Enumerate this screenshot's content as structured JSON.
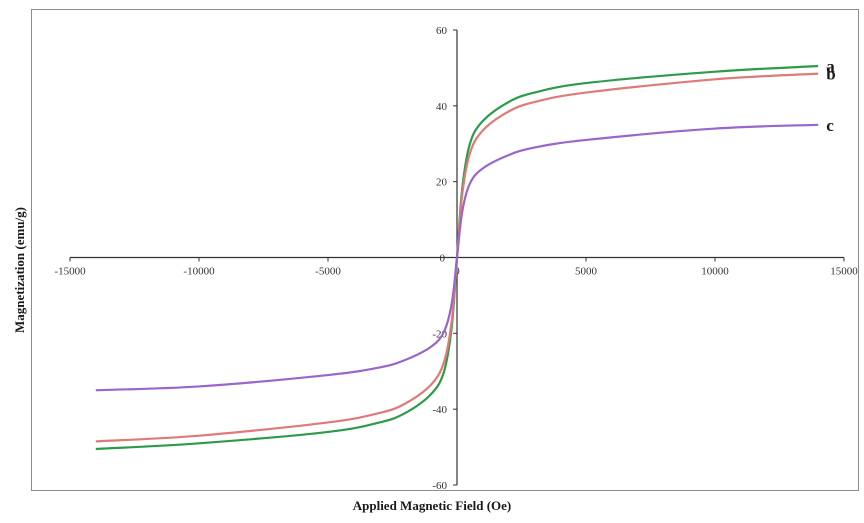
{
  "chart_data": {
    "type": "line",
    "xlabel": "Applied Magnetic Field (Oe)",
    "ylabel": "Magnetization (emu/g)",
    "xlim": [
      -15000,
      15000
    ],
    "ylim": [
      -60,
      60
    ],
    "x_ticks": [
      -15000,
      -10000,
      -5000,
      0,
      5000,
      10000,
      15000
    ],
    "y_ticks": [
      -60,
      -40,
      -20,
      0,
      20,
      40,
      60
    ],
    "x_tick_labels": [
      "-15000",
      "-10000",
      "-5000",
      "0",
      "5000",
      "10000",
      "15000"
    ],
    "y_tick_labels": [
      "-60",
      "-40",
      "-20",
      "0",
      "20",
      "40",
      "60"
    ],
    "grid": false,
    "legend": "series labels at right end of curves",
    "series": [
      {
        "name": "a",
        "color": "#2e9b4a",
        "x": [
          -14000,
          -10000,
          -5000,
          -3000,
          -2000,
          -1000,
          -500,
          -200,
          0,
          200,
          500,
          1000,
          2000,
          3000,
          5000,
          10000,
          14000
        ],
        "y": [
          -50.5,
          -49,
          -46,
          -43.5,
          -41,
          -36,
          -30,
          -18,
          0,
          18,
          30,
          36,
          41,
          43.5,
          46,
          49,
          50.5
        ]
      },
      {
        "name": "b",
        "color": "#e07a78",
        "x": [
          -14000,
          -10000,
          -5000,
          -3000,
          -2000,
          -1000,
          -500,
          -200,
          0,
          200,
          500,
          1000,
          2000,
          3000,
          5000,
          10000,
          14000
        ],
        "y": [
          -48.5,
          -47,
          -43.5,
          -41,
          -38.5,
          -33.5,
          -27.5,
          -16.5,
          0,
          16.5,
          27.5,
          33.5,
          38.5,
          41,
          43.5,
          47,
          48.5
        ]
      },
      {
        "name": "c",
        "color": "#9966cc",
        "x": [
          -14000,
          -10000,
          -5000,
          -3000,
          -2000,
          -1000,
          -500,
          -200,
          0,
          200,
          500,
          1000,
          2000,
          3000,
          5000,
          10000,
          14000
        ],
        "y": [
          -35,
          -34,
          -31,
          -29,
          -27,
          -23.5,
          -19.5,
          -12,
          0,
          12,
          19.5,
          23.5,
          27,
          29,
          31,
          34,
          35
        ]
      }
    ]
  }
}
